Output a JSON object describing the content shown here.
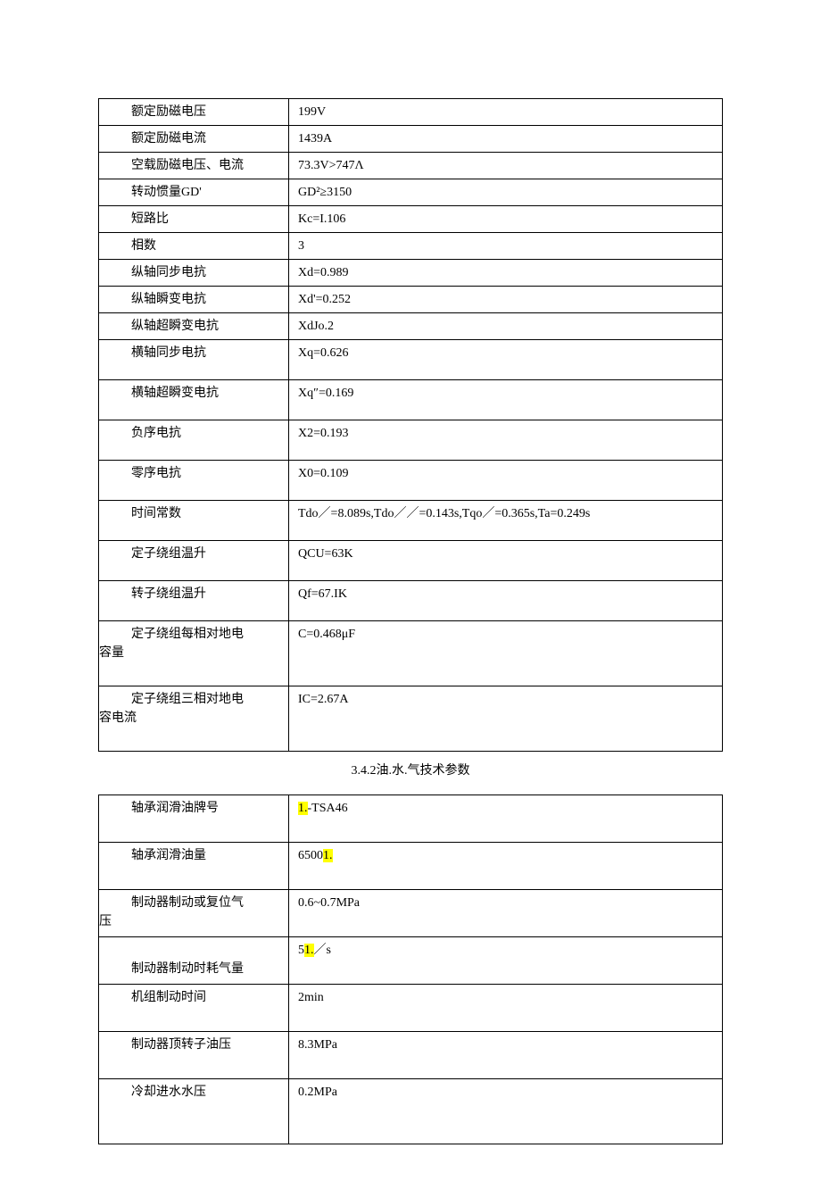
{
  "table1": {
    "columns": {
      "label_width": 170
    },
    "rows": [
      {
        "label": "额定励磁电压",
        "value": "199V",
        "h": "short"
      },
      {
        "label": "额定励磁电流",
        "value": "1439A",
        "h": "short"
      },
      {
        "label": "空载励磁电压、电流",
        "value": "73.3V>747Λ",
        "h": "short"
      },
      {
        "label": "转动惯量GD'",
        "value": "GD²≥3150",
        "h": "short"
      },
      {
        "label": "短路比",
        "value": "Kc=I.106",
        "h": "short"
      },
      {
        "label": "相数",
        "value": "3",
        "h": "short"
      },
      {
        "label": "纵轴同步电抗",
        "value": "Xd=0.989",
        "h": "short"
      },
      {
        "label": "纵轴瞬变电抗",
        "value": "Xd'=0.252",
        "h": "short"
      },
      {
        "label": "纵轴超瞬变电抗",
        "value": "XdJo.2",
        "h": "short"
      },
      {
        "label": "横轴同步电抗",
        "value": "Xq=0.626",
        "h": "tall"
      },
      {
        "label": "横轴超瞬变电抗",
        "value": "Xq″=0.169",
        "h": "tall"
      },
      {
        "label": "负序电抗",
        "value": "X2=0.193",
        "h": "tall"
      },
      {
        "label": "零序电抗",
        "value": "X0=0.109",
        "h": "tall"
      },
      {
        "label": "时间常数",
        "value": "Tdo／=8.089s,Tdo／／=0.143s,Tqo／=0.365s,Ta=0.249s",
        "h": "tall"
      },
      {
        "label": "定子绕组温升",
        "value": "QCU=63K",
        "h": "tall"
      },
      {
        "label": "转子绕组温升",
        "value": "Qf=67.IK",
        "h": "tall"
      },
      {
        "label_first": "定子绕组每相对地电",
        "label_rest": "容量",
        "value": "C=0.468μF",
        "h": "vtall",
        "wrap": true
      },
      {
        "label_first": "定子绕组三相对地电",
        "label_rest": "容电流",
        "value": "IC=2.67A",
        "h": "vtall",
        "wrap": true
      }
    ]
  },
  "heading": "3.4.2油.水.气技术参数",
  "table2": {
    "rows": [
      {
        "label": "轴承润滑油牌号",
        "value_pre": "",
        "value_hl": "1.",
        "value_post": "-TSA46",
        "h": "taller"
      },
      {
        "label": "轴承润滑油量",
        "value_pre": "6500",
        "value_hl": "1.",
        "value_post": "",
        "h": "taller"
      },
      {
        "label_first": "制动器制动或复位气",
        "label_rest": "压",
        "value_pre": "0.6~0.7MPa",
        "value_hl": "",
        "value_post": "",
        "h": "taller",
        "wrap": true
      },
      {
        "label_first": "",
        "label_rest": "制动器制动时耗气量",
        "value_pre": "5",
        "value_hl": "1.",
        "value_post": "／s",
        "h": "taller",
        "wrap": true,
        "bottom": true
      },
      {
        "label": "机组制动时间",
        "value_pre": "2min",
        "value_hl": "",
        "value_post": "",
        "h": "taller"
      },
      {
        "label": "制动器顶转子油压",
        "value_pre": "8.3MPa",
        "value_hl": "",
        "value_post": "",
        "h": "taller"
      },
      {
        "label": "冷却进水水压",
        "value_pre": "0.2MPa",
        "value_hl": "",
        "value_post": "",
        "h": "vtall"
      }
    ]
  }
}
